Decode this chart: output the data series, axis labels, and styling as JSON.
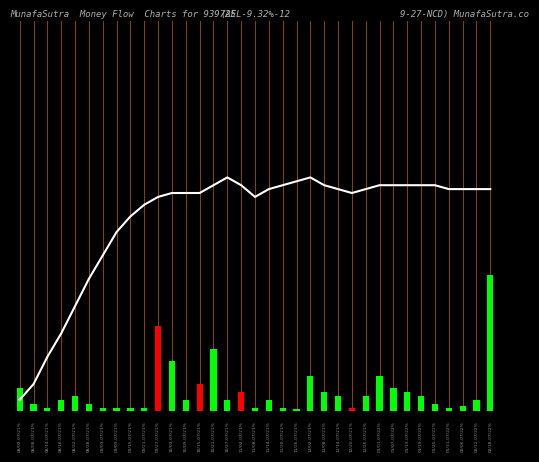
{
  "title_left": "MunafaSutra  Money Flow  Charts for 939725",
  "title_mid": "(AEL-9.32%-12",
  "title_right": "9-27-NCD) MunafaSutra.co",
  "background_color": "#000000",
  "line_color": "#ffffff",
  "bar_green": "#00ff00",
  "bar_red": "#ff0000",
  "vline_color": "#8B4500",
  "title_color": "#b0b0b0",
  "title_fontsize": 6.5,
  "n_bars": 35,
  "bar_heights": [
    6,
    2,
    1,
    3,
    4,
    2,
    1,
    1,
    1,
    1,
    22,
    13,
    3,
    7,
    16,
    3,
    5,
    1,
    3,
    1,
    0.5,
    9,
    5,
    4,
    1,
    4,
    9,
    6,
    5,
    4,
    2,
    1,
    1.5,
    3,
    35
  ],
  "bar_colors": [
    "green",
    "green",
    "green",
    "green",
    "green",
    "green",
    "green",
    "green",
    "green",
    "green",
    "red",
    "green",
    "green",
    "red",
    "green",
    "green",
    "red",
    "green",
    "green",
    "green",
    "green",
    "green",
    "green",
    "green",
    "red",
    "green",
    "green",
    "green",
    "green",
    "green",
    "green",
    "green",
    "green",
    "green",
    "green"
  ],
  "price_line_y": [
    3,
    7,
    14,
    20,
    27,
    34,
    40,
    46,
    50,
    53,
    55,
    56,
    56,
    56,
    58,
    60,
    58,
    55,
    57,
    58,
    59,
    60,
    58,
    57,
    56,
    57,
    58,
    58,
    58,
    58,
    58,
    57,
    57,
    57,
    57
  ],
  "y_max": 100,
  "xlabels": [
    "08/02-07/21%",
    "08/08-07/21%",
    "08/14-07/21%",
    "08/16-07/21%",
    "08/22-07/21%",
    "08/28-07/21%",
    "09/03-07/21%",
    "09/09-07/21%",
    "09/15-07/21%",
    "09/21-07/21%",
    "09/27-07/21%",
    "10/03-07/21%",
    "10/09-07/21%",
    "10/15-07/21%",
    "10/21-07/21%",
    "10/27-07/21%",
    "11/02-07/21%",
    "11/08-07/21%",
    "11/14-07/21%",
    "11/20-07/21%",
    "11/26-07/21%",
    "12/02-07/21%",
    "12/08-07/21%",
    "12/14-07/21%",
    "12/20-07/21%",
    "12/26-07/21%",
    "01/01-07/22%",
    "01/07-07/22%",
    "01/13-07/22%",
    "01/19-07/22%",
    "01/25-07/22%",
    "01/31-07/22%",
    "02/06-07/22%",
    "02/12-07/22%",
    "02/18-07/22%"
  ]
}
